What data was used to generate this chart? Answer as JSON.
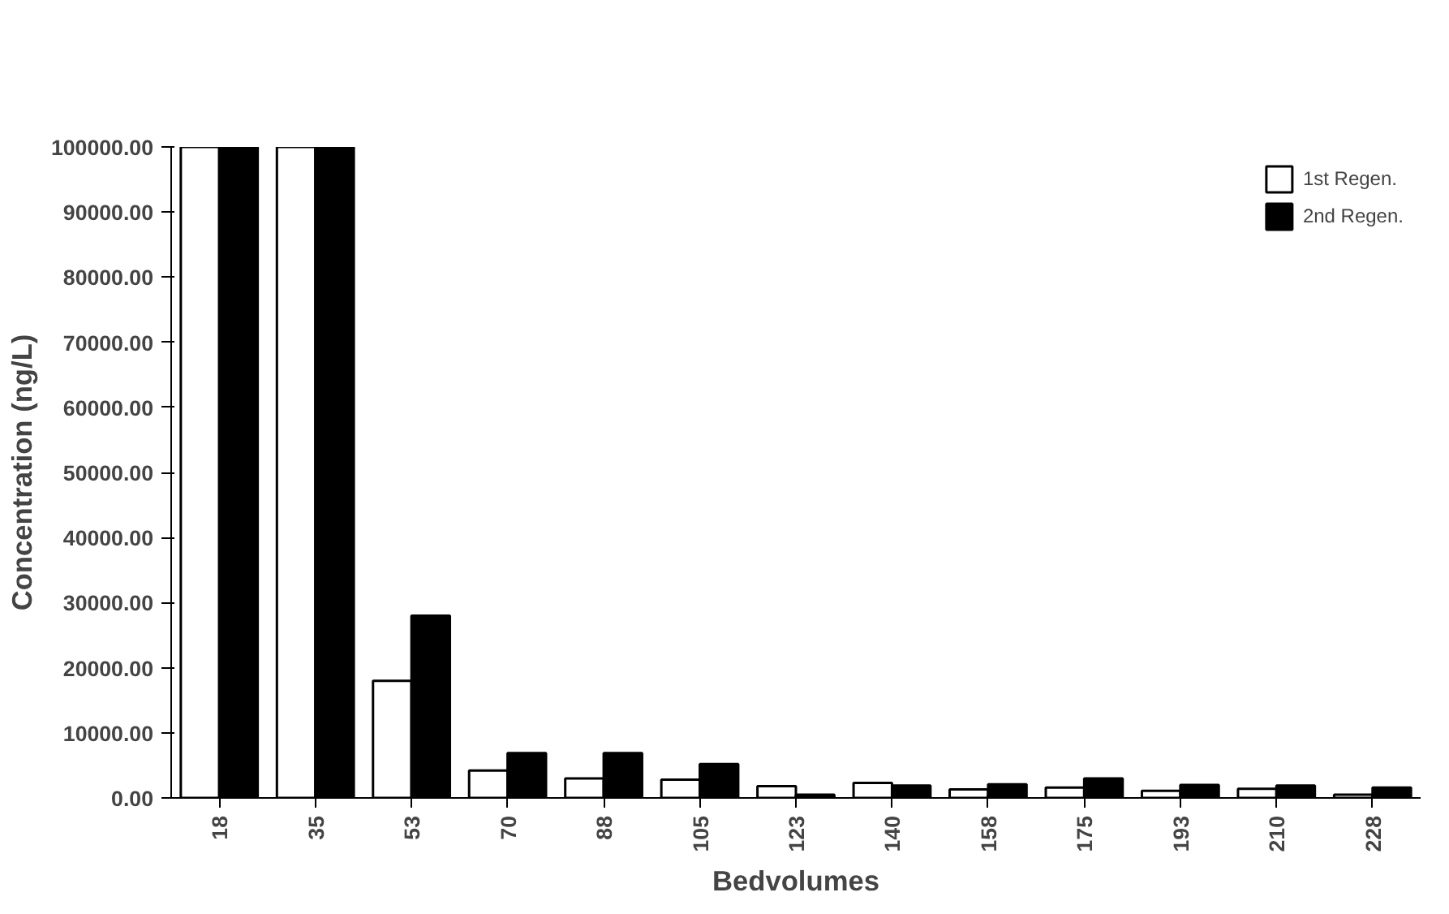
{
  "chart_data": {
    "type": "bar",
    "xlabel": "Bedvolumes",
    "ylabel": "Concentration (ng/L)",
    "categories": [
      "18",
      "35",
      "53",
      "70",
      "88",
      "105",
      "123",
      "140",
      "158",
      "175",
      "193",
      "210",
      "228"
    ],
    "series": [
      {
        "name": "1st Regen.",
        "color": "#ffffff",
        "values": [
          100000,
          100000,
          18000,
          4200,
          3000,
          2800,
          1800,
          2300,
          1300,
          1600,
          1100,
          1400,
          500
        ]
      },
      {
        "name": "2nd Regen.",
        "color": "#000000",
        "values": [
          100000,
          100000,
          28000,
          6900,
          6900,
          5200,
          500,
          1900,
          2100,
          3000,
          2000,
          1900,
          1600
        ]
      }
    ],
    "ylim": [
      0,
      100000
    ],
    "yticks": [
      {
        "value": 0,
        "label": "0.00"
      },
      {
        "value": 10000,
        "label": "10000.00"
      },
      {
        "value": 20000,
        "label": "20000.00"
      },
      {
        "value": 30000,
        "label": "30000.00"
      },
      {
        "value": 40000,
        "label": "40000.00"
      },
      {
        "value": 50000,
        "label": "50000.00"
      },
      {
        "value": 60000,
        "label": "60000.00"
      },
      {
        "value": 70000,
        "label": "70000.00"
      },
      {
        "value": 80000,
        "label": "80000.00"
      },
      {
        "value": 90000,
        "label": "90000.00"
      },
      {
        "value": 100000,
        "label": "100000.00"
      }
    ],
    "grid": false,
    "legend": "top right"
  }
}
